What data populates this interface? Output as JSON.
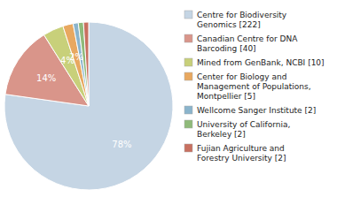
{
  "chart_data": {
    "type": "pie",
    "categories": [
      "Centre for Biodiversity\nGenomics [222]",
      "Canadian Centre for DNA\nBarcoding [40]",
      "Mined from GenBank, NCBI [10]",
      "Center for Biology and\nManagement of Populations,\nMontpellier [5]",
      "Wellcome Sanger Institute [2]",
      "University of California,\nBerkeley [2]",
      "Fujian Agriculture and\nForestry University [2]"
    ],
    "values": [
      78,
      14,
      4,
      2,
      1,
      1,
      1
    ],
    "value_labels": [
      "78%",
      "14%",
      "4%",
      "2%",
      null,
      null,
      null
    ],
    "data_labels": true,
    "colors": [
      "#c5d5e4",
      "#d9958a",
      "#c8d07a",
      "#e8a860",
      "#8ab4cc",
      "#8fba7a",
      "#c87060"
    ],
    "legend": "right"
  }
}
